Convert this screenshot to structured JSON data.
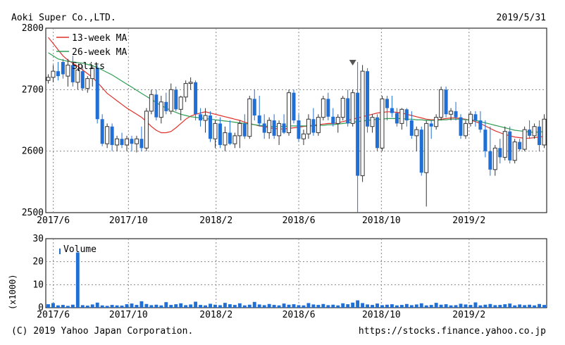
{
  "header": {
    "company": "Aoki Super Co.,LTD.",
    "date": "2019/5/31"
  },
  "footer": {
    "copyright": "(C) 2019 Yahoo Japan Corporation.",
    "url": "https://stocks.finance.yahoo.co.jp"
  },
  "colors": {
    "up": "#333333",
    "down": "#1f6fd6",
    "ma13": "#e0302a",
    "ma26": "#2e9e55",
    "volume": "#1f6fd6",
    "grid": "#888888",
    "split_marker": "#555555"
  },
  "chart_data": [
    {
      "type": "candlestick",
      "x_tick_labels": [
        "2017/6",
        "2017/10",
        "2018/2",
        "2018/6",
        "2018/10",
        "2019/2"
      ],
      "y_tick_labels": [
        "2800",
        "2700",
        "2600",
        "2500"
      ],
      "ylim": [
        2500,
        2800
      ],
      "grid": true,
      "legend_position": "top-left",
      "legend": [
        "13-week MA",
        "26-week MA",
        "Splits"
      ],
      "x_dates": [
        "2017/06/05",
        "2017/06/12",
        "2017/06/19",
        "2017/06/26",
        "2017/07/03",
        "2017/07/10",
        "2017/07/17",
        "2017/07/24",
        "2017/07/31",
        "2017/08/07",
        "2017/08/14",
        "2017/08/21",
        "2017/08/28",
        "2017/09/04",
        "2017/09/11",
        "2017/09/18",
        "2017/09/25",
        "2017/10/02",
        "2017/10/09",
        "2017/10/16",
        "2017/10/23",
        "2017/10/30",
        "2017/11/06",
        "2017/11/13",
        "2017/11/20",
        "2017/11/27",
        "2017/12/04",
        "2017/12/11",
        "2017/12/18",
        "2017/12/25",
        "2018/01/01",
        "2018/01/08",
        "2018/01/15",
        "2018/01/22",
        "2018/01/29",
        "2018/02/05",
        "2018/02/12",
        "2018/02/19",
        "2018/02/26",
        "2018/03/05",
        "2018/03/12",
        "2018/03/19",
        "2018/03/26",
        "2018/04/02",
        "2018/04/09",
        "2018/04/16",
        "2018/04/23",
        "2018/04/30",
        "2018/05/07",
        "2018/05/14",
        "2018/05/21",
        "2018/05/28",
        "2018/06/04",
        "2018/06/11",
        "2018/06/18",
        "2018/06/25",
        "2018/07/02",
        "2018/07/09",
        "2018/07/16",
        "2018/07/23",
        "2018/07/30",
        "2018/08/06",
        "2018/08/13",
        "2018/08/20",
        "2018/08/27",
        "2018/09/03",
        "2018/09/10",
        "2018/09/17",
        "2018/09/24",
        "2018/10/01",
        "2018/10/08",
        "2018/10/15",
        "2018/10/22",
        "2018/10/29",
        "2018/11/05",
        "2018/11/12",
        "2018/11/19",
        "2018/11/26",
        "2018/12/03",
        "2018/12/10",
        "2018/12/17",
        "2018/12/24",
        "2018/12/31",
        "2019/01/07",
        "2019/01/14",
        "2019/01/21",
        "2019/01/28",
        "2019/02/04",
        "2019/02/11",
        "2019/02/18",
        "2019/02/25",
        "2019/03/04",
        "2019/03/11",
        "2019/03/18",
        "2019/03/25",
        "2019/04/01",
        "2019/04/08",
        "2019/04/15",
        "2019/04/22",
        "2019/04/29",
        "2019/05/06",
        "2019/05/13",
        "2019/05/20",
        "2019/05/27"
      ],
      "candles": [
        [
          2715,
          2725,
          2710,
          2720
        ],
        [
          2720,
          2740,
          2712,
          2730
        ],
        [
          2730,
          2745,
          2715,
          2722
        ],
        [
          2745,
          2750,
          2718,
          2725
        ],
        [
          2722,
          2750,
          2705,
          2740
        ],
        [
          2740,
          2755,
          2705,
          2712
        ],
        [
          2712,
          2735,
          2700,
          2732
        ],
        [
          2730,
          2740,
          2698,
          2702
        ],
        [
          2702,
          2722,
          2695,
          2718
        ],
        [
          2718,
          2740,
          2705,
          2735
        ],
        [
          2735,
          2740,
          2645,
          2652
        ],
        [
          2652,
          2660,
          2608,
          2612
        ],
        [
          2612,
          2645,
          2605,
          2640
        ],
        [
          2640,
          2645,
          2600,
          2610
        ],
        [
          2610,
          2625,
          2600,
          2620
        ],
        [
          2620,
          2630,
          2605,
          2610
        ],
        [
          2610,
          2625,
          2600,
          2620
        ],
        [
          2620,
          2625,
          2600,
          2612
        ],
        [
          2612,
          2625,
          2598,
          2620
        ],
        [
          2620,
          2640,
          2600,
          2605
        ],
        [
          2605,
          2670,
          2600,
          2665
        ],
        [
          2665,
          2700,
          2660,
          2692
        ],
        [
          2692,
          2700,
          2650,
          2655
        ],
        [
          2655,
          2690,
          2645,
          2680
        ],
        [
          2680,
          2695,
          2660,
          2665
        ],
        [
          2665,
          2710,
          2660,
          2700
        ],
        [
          2700,
          2705,
          2665,
          2668
        ],
        [
          2668,
          2690,
          2650,
          2688
        ],
        [
          2688,
          2715,
          2680,
          2710
        ],
        [
          2710,
          2720,
          2700,
          2712
        ],
        [
          2712,
          2715,
          2650,
          2660
        ],
        [
          2660,
          2670,
          2640,
          2650
        ],
        [
          2650,
          2670,
          2630,
          2658
        ],
        [
          2658,
          2665,
          2615,
          2620
        ],
        [
          2620,
          2650,
          2605,
          2645
        ],
        [
          2645,
          2655,
          2605,
          2610
        ],
        [
          2610,
          2640,
          2600,
          2630
        ],
        [
          2630,
          2650,
          2610,
          2612
        ],
        [
          2612,
          2630,
          2605,
          2625
        ],
        [
          2625,
          2650,
          2605,
          2645
        ],
        [
          2645,
          2660,
          2620,
          2624
        ],
        [
          2624,
          2690,
          2620,
          2685
        ],
        [
          2685,
          2700,
          2650,
          2658
        ],
        [
          2658,
          2690,
          2640,
          2645
        ],
        [
          2645,
          2660,
          2620,
          2630
        ],
        [
          2630,
          2655,
          2620,
          2650
        ],
        [
          2650,
          2660,
          2620,
          2625
        ],
        [
          2625,
          2650,
          2610,
          2645
        ],
        [
          2645,
          2660,
          2628,
          2630
        ],
        [
          2630,
          2700,
          2625,
          2695
        ],
        [
          2695,
          2700,
          2645,
          2650
        ],
        [
          2650,
          2660,
          2615,
          2620
        ],
        [
          2620,
          2635,
          2610,
          2628
        ],
        [
          2628,
          2660,
          2620,
          2652
        ],
        [
          2652,
          2670,
          2625,
          2630
        ],
        [
          2630,
          2660,
          2625,
          2655
        ],
        [
          2655,
          2690,
          2650,
          2685
        ],
        [
          2685,
          2695,
          2650,
          2656
        ],
        [
          2656,
          2670,
          2640,
          2645
        ],
        [
          2645,
          2660,
          2630,
          2655
        ],
        [
          2655,
          2690,
          2650,
          2686
        ],
        [
          2686,
          2700,
          2640,
          2645
        ],
        [
          2645,
          2700,
          2640,
          2695
        ],
        [
          2695,
          2745,
          2500,
          2560
        ],
        [
          2560,
          2740,
          2550,
          2730
        ],
        [
          2730,
          2735,
          2630,
          2640
        ],
        [
          2640,
          2660,
          2630,
          2655
        ],
        [
          2655,
          2660,
          2600,
          2605
        ],
        [
          2605,
          2690,
          2600,
          2685
        ],
        [
          2685,
          2690,
          2650,
          2670
        ],
        [
          2670,
          2690,
          2655,
          2662
        ],
        [
          2662,
          2670,
          2640,
          2645
        ],
        [
          2645,
          2670,
          2635,
          2668
        ],
        [
          2668,
          2670,
          2640,
          2650
        ],
        [
          2650,
          2665,
          2620,
          2625
        ],
        [
          2625,
          2640,
          2600,
          2635
        ],
        [
          2635,
          2640,
          2560,
          2565
        ],
        [
          2565,
          2650,
          2510,
          2645
        ],
        [
          2645,
          2650,
          2620,
          2640
        ],
        [
          2640,
          2660,
          2635,
          2655
        ],
        [
          2655,
          2705,
          2650,
          2700
        ],
        [
          2700,
          2705,
          2655,
          2660
        ],
        [
          2660,
          2670,
          2650,
          2665
        ],
        [
          2665,
          2680,
          2650,
          2655
        ],
        [
          2655,
          2660,
          2620,
          2625
        ],
        [
          2625,
          2650,
          2620,
          2645
        ],
        [
          2645,
          2665,
          2640,
          2660
        ],
        [
          2660,
          2665,
          2640,
          2650
        ],
        [
          2650,
          2665,
          2630,
          2635
        ],
        [
          2635,
          2650,
          2590,
          2600
        ],
        [
          2600,
          2640,
          2560,
          2570
        ],
        [
          2570,
          2610,
          2560,
          2605
        ],
        [
          2605,
          2620,
          2580,
          2590
        ],
        [
          2590,
          2640,
          2585,
          2632
        ],
        [
          2632,
          2640,
          2580,
          2585
        ],
        [
          2585,
          2620,
          2580,
          2615
        ],
        [
          2615,
          2620,
          2600,
          2603
        ],
        [
          2603,
          2640,
          2600,
          2635
        ],
        [
          2635,
          2650,
          2620,
          2625
        ],
        [
          2625,
          2645,
          2620,
          2640
        ],
        [
          2640,
          2650,
          2600,
          2610
        ],
        [
          2610,
          2660,
          2605,
          2652
        ]
      ],
      "series": [
        {
          "name": "13-week MA",
          "values": [
            2785,
            2775,
            2765,
            2755,
            2748,
            2743,
            2738,
            2732,
            2726,
            2720,
            2712,
            2703,
            2694,
            2688,
            2682,
            2676,
            2670,
            2665,
            2660,
            2655,
            2648,
            2640,
            2634,
            2630,
            2630,
            2632,
            2638,
            2645,
            2652,
            2657,
            2660,
            2662,
            2664,
            2662,
            2660,
            2658,
            2656,
            2654,
            2652,
            2650,
            2647,
            2645,
            2643,
            2641,
            2640,
            2638,
            2637,
            2636,
            2636,
            2637,
            2638,
            2639,
            2640,
            2641,
            2642,
            2643,
            2644,
            2645,
            2645,
            2646,
            2648,
            2650,
            2652,
            2654,
            2656,
            2658,
            2660,
            2662,
            2663,
            2664,
            2664,
            2663,
            2662,
            2660,
            2658,
            2656,
            2654,
            2652,
            2651,
            2651,
            2652,
            2653,
            2654,
            2654,
            2653,
            2652,
            2650,
            2648,
            2645,
            2641,
            2637,
            2633,
            2630,
            2627,
            2625,
            2623,
            2622,
            2621,
            2621,
            2622,
            2623,
            2624
          ]
        },
        {
          "name": "26-week MA",
          "values": [
            2760,
            2755,
            2750,
            2748,
            2746,
            2745,
            2744,
            2743,
            2741,
            2739,
            2736,
            2732,
            2728,
            2724,
            2719,
            2714,
            2709,
            2704,
            2699,
            2694,
            2689,
            2684,
            2679,
            2674,
            2670,
            2666,
            2663,
            2660,
            2658,
            2656,
            2655,
            2654,
            2653,
            2652,
            2651,
            2650,
            2649,
            2648,
            2647,
            2646,
            2645,
            2644,
            2643,
            2642,
            2641,
            2640,
            2640,
            2640,
            2640,
            2641,
            2641,
            2641,
            2641,
            2641,
            2641,
            2642,
            2642,
            2643,
            2643,
            2644,
            2645,
            2646,
            2647,
            2648,
            2649,
            2650,
            2651,
            2652,
            2652,
            2653,
            2653,
            2653,
            2653,
            2652,
            2652,
            2651,
            2651,
            2650,
            2650,
            2650,
            2651,
            2651,
            2652,
            2652,
            2652,
            2651,
            2651,
            2650,
            2648,
            2646,
            2644,
            2642,
            2640,
            2638,
            2636,
            2634,
            2633,
            2632,
            2631,
            2631,
            2631,
            2632
          ]
        }
      ],
      "split_marker_index": 62
    },
    {
      "type": "bar",
      "series_name": "Volume",
      "y_tick_labels": [
        "30",
        "20",
        "10",
        "0"
      ],
      "ylabel": "(x1000)",
      "ylim": [
        0,
        30
      ],
      "x_tick_labels": [
        "2017/6",
        "2017/10",
        "2018/2",
        "2018/6",
        "2018/10",
        "2019/2"
      ],
      "legend": [
        "Volume"
      ],
      "values": [
        1.5,
        2.0,
        1.0,
        1.2,
        0.8,
        1.3,
        24,
        1.1,
        0.9,
        1.4,
        2.2,
        1.0,
        0.8,
        1.2,
        1.0,
        0.9,
        1.5,
        1.8,
        1.2,
        2.8,
        1.6,
        1.1,
        1.3,
        1.0,
        2.4,
        1.2,
        1.5,
        1.9,
        1.1,
        1.4,
        2.6,
        1.2,
        1.0,
        1.7,
        1.3,
        1.1,
        2.1,
        1.5,
        1.2,
        1.9,
        1.0,
        1.3,
        2.5,
        1.4,
        1.1,
        1.6,
        1.2,
        1.0,
        1.8,
        1.3,
        1.5,
        1.1,
        1.0,
        2.0,
        1.4,
        1.2,
        1.6,
        1.1,
        1.3,
        1.0,
        1.9,
        1.5,
        2.2,
        3.2,
        2.0,
        1.4,
        1.2,
        1.8,
        1.1,
        1.3,
        1.5,
        1.0,
        1.2,
        1.6,
        1.1,
        1.4,
        1.9,
        1.0,
        1.2,
        2.1,
        1.3,
        1.5,
        1.0,
        1.1,
        1.7,
        1.4,
        1.2,
        2.3,
        1.0,
        1.3,
        1.6,
        1.1,
        1.2,
        1.5,
        1.8,
        1.0,
        1.4,
        1.1,
        1.3,
        1.0,
        1.6,
        1.2
      ]
    }
  ]
}
